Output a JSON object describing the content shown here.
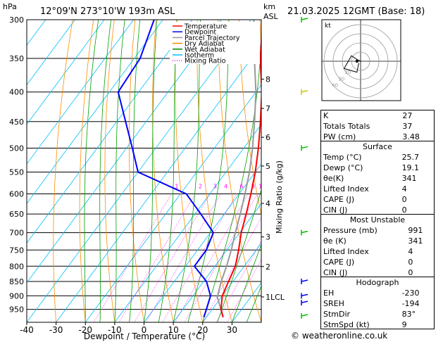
{
  "header": {
    "location": "12°09'N 273°10'W 193m ASL",
    "date": "21.03.2025 12GMT (Base: 18)",
    "hpa_label": "hPa",
    "km_label": "km",
    "asl_label": "ASL"
  },
  "chart_data": {
    "type": "skew-t log-p",
    "xlabel": "Dewpoint / Temperature (°C)",
    "ylabel_right": "Mixing Ratio (g/kg)",
    "pressure_ticks": [
      300,
      350,
      400,
      450,
      500,
      550,
      600,
      650,
      700,
      750,
      800,
      850,
      900,
      950
    ],
    "temperature_ticks": [
      -40,
      -30,
      -20,
      -10,
      0,
      10,
      20,
      30
    ],
    "xlim": [
      -40,
      40
    ],
    "ylim_hpa": [
      1000,
      300
    ],
    "km_ticks": [
      {
        "label": "8",
        "p": 380
      },
      {
        "label": "7",
        "p": 427
      },
      {
        "label": "6",
        "p": 479
      },
      {
        "label": "5",
        "p": 537
      },
      {
        "label": "4",
        "p": 623
      },
      {
        "label": "3",
        "p": 712
      },
      {
        "label": "2",
        "p": 801
      },
      {
        "label": "1LCL",
        "p": 904
      }
    ],
    "mixing_ratio_labels": [
      "1",
      "2",
      "3",
      "4",
      "6",
      "8",
      "10",
      "15",
      "20",
      "25"
    ],
    "mixing_ratio_label_p": 580,
    "legend": [
      {
        "name": "Temperature",
        "color": "#ff0000"
      },
      {
        "name": "Dewpoint",
        "color": "#0000ff"
      },
      {
        "name": "Parcel Trajectory",
        "color": "#999999"
      },
      {
        "name": "Dry Adiabat",
        "color": "#ff8c00"
      },
      {
        "name": "Wet Adiabat",
        "color": "#008000"
      },
      {
        "name": "Isotherm",
        "color": "#00bfff"
      },
      {
        "name": "Mixing Ratio",
        "color": "#ff00ff"
      }
    ],
    "temperature_profile": [
      {
        "p": 980,
        "t": 25.7
      },
      {
        "p": 950,
        "t": 23
      },
      {
        "p": 900,
        "t": 20
      },
      {
        "p": 850,
        "t": 18.5
      },
      {
        "p": 800,
        "t": 17
      },
      {
        "p": 750,
        "t": 14
      },
      {
        "p": 700,
        "t": 10.5
      },
      {
        "p": 650,
        "t": 7.5
      },
      {
        "p": 600,
        "t": 4
      },
      {
        "p": 550,
        "t": 0
      },
      {
        "p": 500,
        "t": -5
      },
      {
        "p": 450,
        "t": -11
      },
      {
        "p": 400,
        "t": -18
      },
      {
        "p": 350,
        "t": -27
      },
      {
        "p": 300,
        "t": -36
      }
    ],
    "dewpoint_profile": [
      {
        "p": 980,
        "t": 19.1
      },
      {
        "p": 950,
        "t": 18
      },
      {
        "p": 900,
        "t": 16
      },
      {
        "p": 850,
        "t": 11
      },
      {
        "p": 800,
        "t": 3
      },
      {
        "p": 750,
        "t": 3
      },
      {
        "p": 700,
        "t": 1
      },
      {
        "p": 650,
        "t": -8
      },
      {
        "p": 600,
        "t": -18
      },
      {
        "p": 550,
        "t": -40
      },
      {
        "p": 500,
        "t": -48
      },
      {
        "p": 450,
        "t": -57
      },
      {
        "p": 400,
        "t": -67
      },
      {
        "p": 350,
        "t": -68
      },
      {
        "p": 300,
        "t": -73
      }
    ],
    "parcel_profile": [
      {
        "p": 980,
        "t": 25.7
      },
      {
        "p": 904,
        "t": 18.6
      },
      {
        "p": 850,
        "t": 16
      },
      {
        "p": 800,
        "t": 14
      },
      {
        "p": 750,
        "t": 11.5
      },
      {
        "p": 700,
        "t": 8.5
      },
      {
        "p": 650,
        "t": 5.5
      },
      {
        "p": 600,
        "t": 2
      },
      {
        "p": 550,
        "t": -2
      },
      {
        "p": 500,
        "t": -7
      },
      {
        "p": 450,
        "t": -13
      },
      {
        "p": 400,
        "t": -20
      },
      {
        "p": 350,
        "t": -29
      },
      {
        "p": 300,
        "t": -39
      }
    ],
    "wind_barbs": [
      {
        "p": 300,
        "color": "#00c000"
      },
      {
        "p": 400,
        "color": "#c8c800"
      },
      {
        "p": 500,
        "color": "#00c000"
      },
      {
        "p": 700,
        "color": "#00c000"
      },
      {
        "p": 850,
        "color": "#0000ff"
      },
      {
        "p": 900,
        "color": "#0000ff"
      },
      {
        "p": 925,
        "color": "#0000ff"
      },
      {
        "p": 975,
        "color": "#00c000"
      }
    ]
  },
  "hodograph": {
    "unit_label": "kt",
    "rings": [
      "10",
      "20",
      "30",
      "40"
    ],
    "ring_labels_shown": [
      "20",
      "30",
      "40"
    ],
    "trace": [
      [
        0,
        0
      ],
      [
        -2,
        1
      ],
      [
        -5,
        3
      ],
      [
        -9,
        -4
      ],
      [
        -2,
        -6
      ],
      [
        -1,
        -1
      ]
    ]
  },
  "indices": {
    "top": [
      {
        "label": "K",
        "value": "27"
      },
      {
        "label": "Totals Totals",
        "value": "37"
      },
      {
        "label": "PW (cm)",
        "value": "3.48"
      }
    ],
    "surface_title": "Surface",
    "surface": [
      {
        "label": "Temp (°C)",
        "value": "25.7"
      },
      {
        "label": "Dewp (°C)",
        "value": "19.1"
      },
      {
        "label": "θe(K)",
        "value": "341"
      },
      {
        "label": "Lifted Index",
        "value": "4"
      },
      {
        "label": "CAPE (J)",
        "value": "0"
      },
      {
        "label": "CIN (J)",
        "value": "0"
      }
    ],
    "mu_title": "Most Unstable",
    "most_unstable": [
      {
        "label": "Pressure (mb)",
        "value": "991"
      },
      {
        "label": "θe (K)",
        "value": "341"
      },
      {
        "label": "Lifted Index",
        "value": "4"
      },
      {
        "label": "CAPE (J)",
        "value": "0"
      },
      {
        "label": "CIN (J)",
        "value": "0"
      }
    ],
    "hodo_title": "Hodograph",
    "hodograph": [
      {
        "label": "EH",
        "value": "-230"
      },
      {
        "label": "SREH",
        "value": "-194"
      },
      {
        "label": "StmDir",
        "value": "83°"
      },
      {
        "label": "StmSpd (kt)",
        "value": "9"
      }
    ]
  },
  "footer": "© weatheronline.co.uk"
}
